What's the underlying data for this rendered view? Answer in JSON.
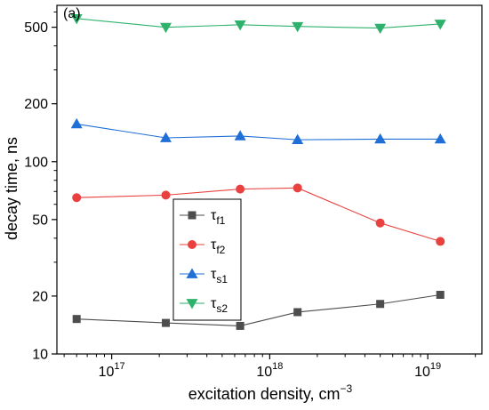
{
  "chart_data": {
    "type": "line",
    "panel_label": "(a)",
    "xlabel": "excitation density, cm",
    "xlabel_superscript": "−3",
    "ylabel": "decay time, ns",
    "xscale": "log",
    "yscale": "log",
    "xlim": [
      4.5e+16,
      2.2e+19
    ],
    "ylim": [
      10,
      650
    ],
    "xticks": [
      {
        "value": 1e+17,
        "base": "10",
        "exp": "17"
      },
      {
        "value": 1e+18,
        "base": "10",
        "exp": "18"
      },
      {
        "value": 1e+19,
        "base": "10",
        "exp": "19"
      }
    ],
    "yticks": [
      {
        "value": 10,
        "label": "10"
      },
      {
        "value": 20,
        "label": "20"
      },
      {
        "value": 50,
        "label": "50"
      },
      {
        "value": 100,
        "label": "100"
      },
      {
        "value": 200,
        "label": "200"
      },
      {
        "value": 500,
        "label": "500"
      }
    ],
    "x": [
      6e+16,
      2.2e+17,
      6.5e+17,
      1.5e+18,
      5e+18,
      1.2e+19
    ],
    "series": [
      {
        "name": "τf1",
        "sym": "τ",
        "sub": "f1",
        "color": "#4d4d4d",
        "marker": "square",
        "values": [
          15.2,
          14.5,
          14.0,
          16.5,
          18.2,
          20.3
        ]
      },
      {
        "name": "τf2",
        "sym": "τ",
        "sub": "f2",
        "color": "#e8413f",
        "marker": "circle",
        "values": [
          65,
          67,
          72,
          73,
          48,
          38.5
        ]
      },
      {
        "name": "τs1",
        "sym": "τ",
        "sub": "s1",
        "color": "#1f6fd6",
        "marker": "triangle-up",
        "values": [
          157,
          133,
          136,
          130,
          131,
          131
        ]
      },
      {
        "name": "τs2",
        "sym": "τ",
        "sub": "s2",
        "color": "#2eb26b",
        "marker": "triangle-down",
        "values": [
          555,
          500,
          515,
          505,
          495,
          520
        ]
      }
    ],
    "legend_position": "center-left",
    "grid": false
  }
}
